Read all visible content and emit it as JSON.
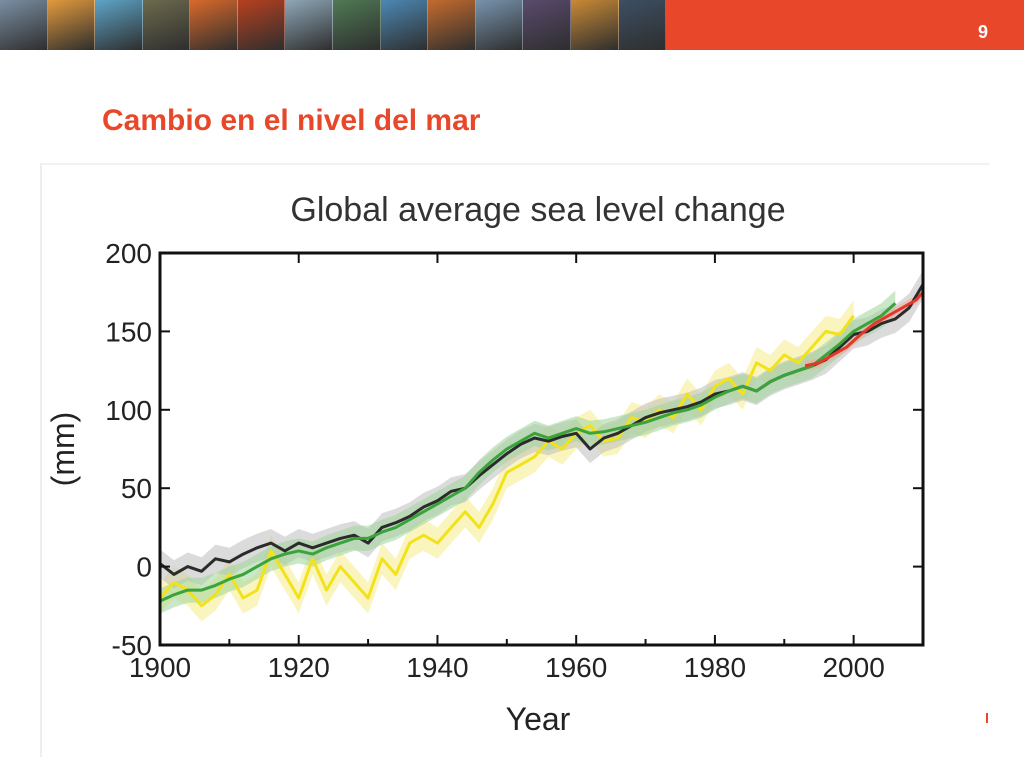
{
  "header": {
    "slide_number": "9",
    "band_color": "#e8472a",
    "photo_tiles": [
      {
        "name": "storage-tanks-photo",
        "color": "#7a8fa3"
      },
      {
        "name": "sunset-plane-photo",
        "color": "#e39a3c"
      },
      {
        "name": "water-photo",
        "color": "#5ea4c8"
      },
      {
        "name": "oil-pump-photo",
        "color": "#6d6a4d"
      },
      {
        "name": "orange-sky-photo",
        "color": "#d9692a"
      },
      {
        "name": "red-sunset-photo",
        "color": "#b8401f"
      },
      {
        "name": "skyscraper-photo",
        "color": "#8fa7b8"
      },
      {
        "name": "leaves-photo",
        "color": "#4f7a54"
      },
      {
        "name": "sea-horizon-photo",
        "color": "#4c88b5"
      },
      {
        "name": "brain-scan-photo",
        "color": "#c56b2e"
      },
      {
        "name": "industrial-plant-photo",
        "color": "#7893ad"
      },
      {
        "name": "city-lights-photo",
        "color": "#5a4a6d"
      },
      {
        "name": "crane-photo",
        "color": "#c98a35"
      },
      {
        "name": "ship-photo",
        "color": "#3d4f63"
      }
    ]
  },
  "slide": {
    "title": "Cambio en el nivel del mar"
  },
  "chart_data": {
    "type": "line",
    "title": "Global average sea level change",
    "xlabel": "Year",
    "ylabel": "(mm)",
    "xlim": [
      1900,
      2010
    ],
    "ylim": [
      -50,
      200
    ],
    "x_ticks": [
      1900,
      1920,
      1940,
      1960,
      1980,
      2000
    ],
    "y_ticks": [
      200,
      150,
      100,
      50,
      0,
      -50
    ],
    "grid": false,
    "series": [
      {
        "color": "#f2e21c",
        "band_color": "#f6ec8a",
        "band": 10,
        "x": [
          1900,
          1902,
          1904,
          1906,
          1908,
          1910,
          1912,
          1914,
          1916,
          1918,
          1920,
          1922,
          1924,
          1926,
          1928,
          1930,
          1932,
          1934,
          1936,
          1938,
          1940,
          1942,
          1944,
          1946,
          1948,
          1950,
          1952,
          1954,
          1956,
          1958,
          1960,
          1962,
          1964,
          1966,
          1968,
          1970,
          1972,
          1974,
          1976,
          1978,
          1980,
          1982,
          1984,
          1986,
          1988,
          1990,
          1992,
          1994,
          1996,
          1998,
          2000
        ],
        "values": [
          -20,
          -10,
          -15,
          -25,
          -18,
          -5,
          -20,
          -15,
          10,
          -5,
          -20,
          5,
          -15,
          0,
          -10,
          -20,
          5,
          -5,
          15,
          20,
          15,
          25,
          35,
          25,
          40,
          60,
          65,
          70,
          80,
          75,
          85,
          90,
          80,
          82,
          95,
          92,
          100,
          95,
          110,
          100,
          115,
          120,
          110,
          130,
          125,
          135,
          130,
          140,
          150,
          148,
          160
        ]
      },
      {
        "color": "#2b2b2b",
        "band_color": "#bdbdbd",
        "band": 9,
        "x": [
          1900,
          1902,
          1904,
          1906,
          1908,
          1910,
          1912,
          1914,
          1916,
          1918,
          1920,
          1922,
          1924,
          1926,
          1928,
          1930,
          1932,
          1934,
          1936,
          1938,
          1940,
          1942,
          1944,
          1946,
          1948,
          1950,
          1952,
          1954,
          1956,
          1958,
          1960,
          1962,
          1964,
          1966,
          1968,
          1970,
          1972,
          1974,
          1976,
          1978,
          1980,
          1982,
          1984,
          1986,
          1988,
          1990,
          1992,
          1994,
          1996,
          1998,
          2000,
          2002,
          2004,
          2006,
          2008,
          2010
        ],
        "values": [
          2,
          -5,
          0,
          -3,
          5,
          3,
          8,
          12,
          15,
          10,
          15,
          12,
          15,
          18,
          20,
          15,
          25,
          28,
          32,
          38,
          42,
          48,
          50,
          58,
          65,
          72,
          78,
          82,
          80,
          83,
          85,
          75,
          82,
          85,
          90,
          95,
          98,
          100,
          102,
          105,
          110,
          112,
          115,
          112,
          118,
          122,
          125,
          128,
          132,
          140,
          148,
          150,
          155,
          158,
          165,
          180
        ]
      },
      {
        "color": "#3aa33a",
        "band_color": "#9fd49a",
        "band": 8,
        "x": [
          1900,
          1902,
          1904,
          1906,
          1908,
          1910,
          1912,
          1914,
          1916,
          1918,
          1920,
          1922,
          1924,
          1926,
          1928,
          1930,
          1932,
          1934,
          1936,
          1938,
          1940,
          1942,
          1944,
          1946,
          1948,
          1950,
          1952,
          1954,
          1956,
          1958,
          1960,
          1962,
          1964,
          1966,
          1968,
          1970,
          1972,
          1974,
          1976,
          1978,
          1980,
          1982,
          1984,
          1986,
          1988,
          1990,
          1992,
          1994,
          1996,
          1998,
          2000,
          2002,
          2004,
          2006
        ],
        "values": [
          -22,
          -18,
          -15,
          -15,
          -12,
          -8,
          -5,
          0,
          5,
          8,
          10,
          8,
          12,
          15,
          18,
          18,
          22,
          25,
          30,
          35,
          40,
          45,
          50,
          60,
          68,
          75,
          80,
          85,
          82,
          85,
          88,
          85,
          86,
          88,
          90,
          92,
          95,
          98,
          100,
          103,
          108,
          112,
          115,
          112,
          118,
          122,
          125,
          128,
          135,
          142,
          150,
          155,
          160,
          168
        ]
      },
      {
        "color": "#e0382a",
        "band_color": "#f2a8a0",
        "band": 3,
        "x": [
          1993,
          1995,
          1997,
          1999,
          2001,
          2003,
          2005,
          2007,
          2009,
          2010
        ],
        "values": [
          128,
          130,
          135,
          140,
          148,
          155,
          160,
          165,
          170,
          175
        ]
      }
    ]
  }
}
